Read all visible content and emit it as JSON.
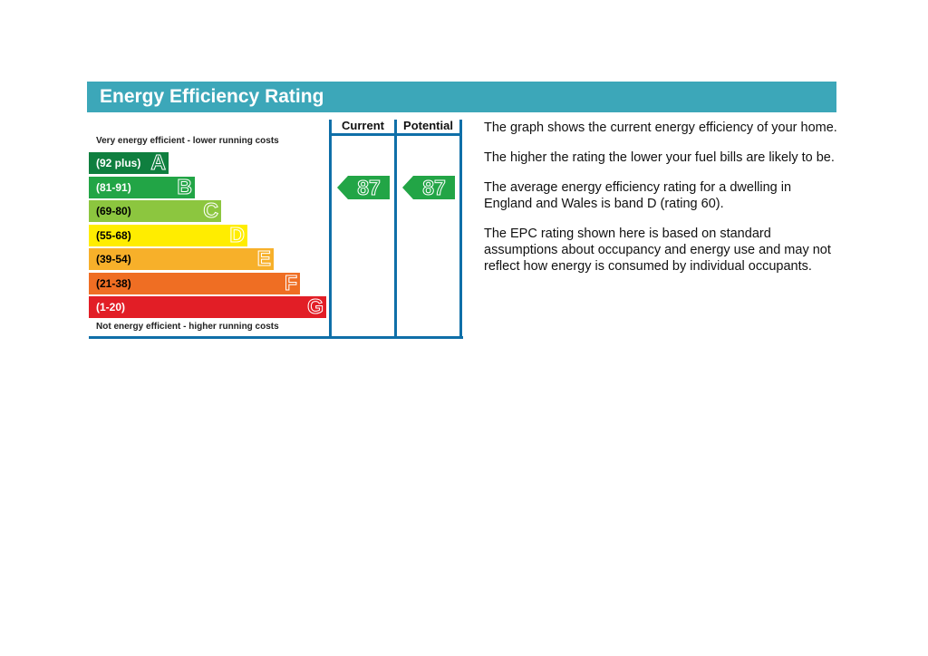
{
  "header": {
    "title": "Energy Efficiency Rating"
  },
  "chart_data": {
    "type": "bar",
    "top_label": "Very energy efficient - lower running costs",
    "bottom_label": "Not energy efficient - higher running costs",
    "bands": [
      {
        "letter": "A",
        "range": "(92 plus)",
        "color": "#0f7f3f",
        "dark_text": false
      },
      {
        "letter": "B",
        "range": "(81-91)",
        "color": "#22a546",
        "dark_text": false
      },
      {
        "letter": "C",
        "range": "(69-80)",
        "color": "#8cc63f",
        "dark_text": true
      },
      {
        "letter": "D",
        "range": "(55-68)",
        "color": "#ffed00",
        "dark_text": true
      },
      {
        "letter": "E",
        "range": "(39-54)",
        "color": "#f7b02a",
        "dark_text": true
      },
      {
        "letter": "F",
        "range": "(21-38)",
        "color": "#ef6e23",
        "dark_text": true
      },
      {
        "letter": "G",
        "range": "(1-20)",
        "color": "#e21e26",
        "dark_text": false
      }
    ],
    "columns": [
      {
        "label": "Current",
        "value": 87,
        "band": "B"
      },
      {
        "label": "Potential",
        "value": 87,
        "band": "B"
      }
    ],
    "arrow_color": "#22a546"
  },
  "description": {
    "p1": "The graph shows the current energy efficiency of your home.",
    "p2": "The higher the rating the lower your fuel bills are likely to be.",
    "p3": "The average energy efficiency rating for a dwelling in England and Wales is band D (rating 60).",
    "p4": "The EPC rating shown here is based on standard assumptions about occupancy and energy use and may not reflect how energy is consumed by individual occupants."
  }
}
